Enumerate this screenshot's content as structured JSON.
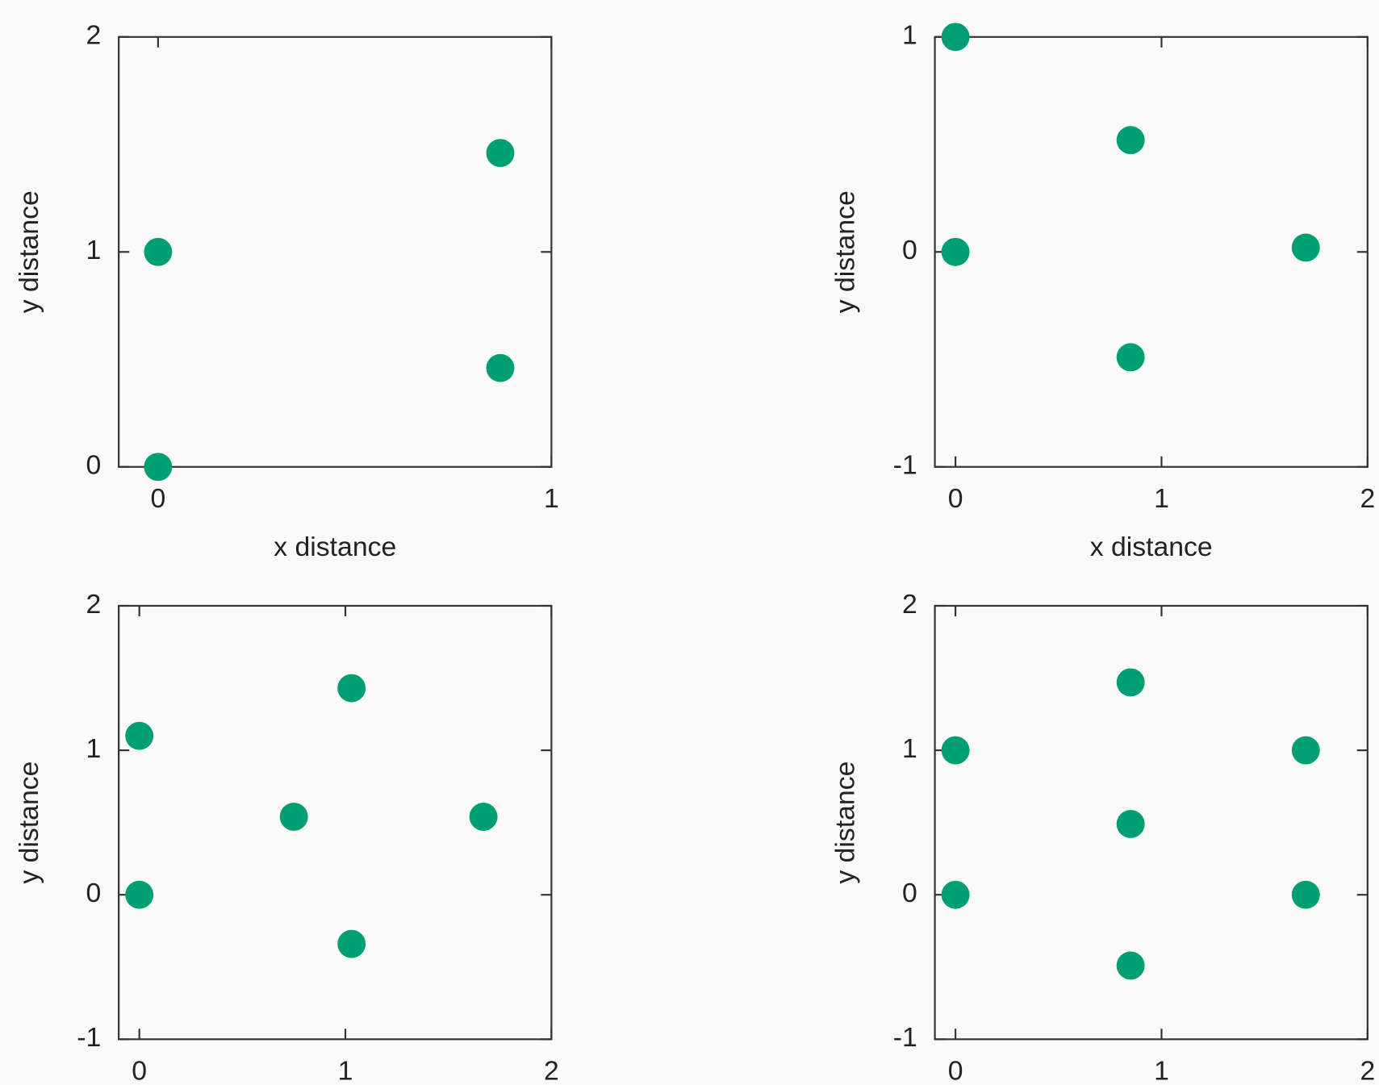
{
  "chart_data": [
    {
      "type": "scatter",
      "xlabel": "x distance",
      "ylabel": "y distance",
      "color": "#009e73",
      "x": [
        0,
        0,
        0.87,
        0.87
      ],
      "y": [
        0,
        1,
        0.46,
        1.46
      ],
      "xlim": [
        -0.1,
        1
      ],
      "ylim": [
        0,
        2
      ],
      "xticks": [
        0,
        1
      ],
      "yticks": [
        0,
        1,
        2
      ]
    },
    {
      "type": "scatter",
      "xlabel": "x distance",
      "ylabel": "y distance",
      "color": "#009e73",
      "x": [
        0,
        0,
        0.85,
        0.85,
        1.7
      ],
      "y": [
        1,
        0,
        0.52,
        -0.49,
        0.02
      ],
      "xlim": [
        -0.1,
        2
      ],
      "ylim": [
        -1,
        1
      ],
      "xticks": [
        0,
        1,
        2
      ],
      "yticks": [
        -1,
        0,
        1
      ]
    },
    {
      "type": "scatter",
      "ylabel": "y distance",
      "color": "#009e73",
      "x": [
        0,
        0,
        0.75,
        1.03,
        1.03,
        1.67
      ],
      "y": [
        1.1,
        0,
        0.54,
        1.43,
        -0.34,
        0.54
      ],
      "xlim": [
        -0.1,
        2
      ],
      "ylim": [
        -1,
        2
      ],
      "xticks": [
        0,
        1,
        2
      ],
      "yticks": [
        -1,
        0,
        1,
        2
      ]
    },
    {
      "type": "scatter",
      "ylabel": "y distance",
      "color": "#009e73",
      "x": [
        0,
        0,
        0.85,
        0.85,
        0.85,
        1.7,
        1.7
      ],
      "y": [
        1,
        0,
        1.47,
        0.49,
        -0.49,
        1,
        0
      ],
      "xlim": [
        -0.1,
        2
      ],
      "ylim": [
        -1,
        2
      ],
      "xticks": [
        0,
        1,
        2
      ],
      "yticks": [
        -1,
        0,
        1,
        2
      ]
    }
  ]
}
